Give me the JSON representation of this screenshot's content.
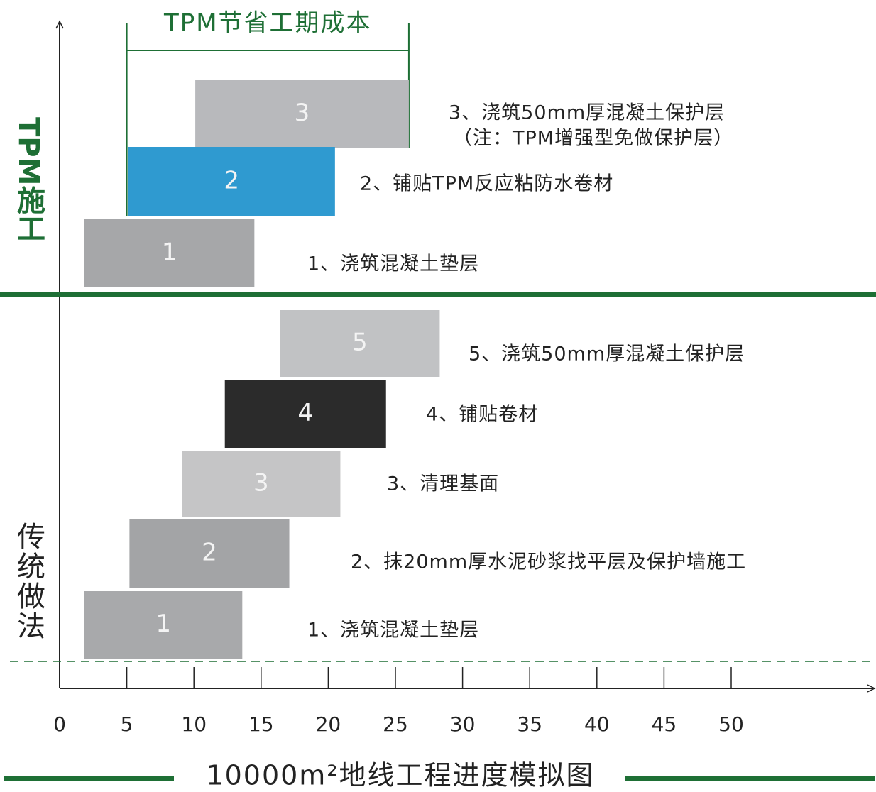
{
  "chart_data": {
    "type": "gantt",
    "title": "10000m²地线工程进度模拟图",
    "xlim": [
      0,
      60
    ],
    "xticks": [
      0,
      5,
      10,
      15,
      20,
      25,
      30,
      35,
      40,
      45,
      50
    ],
    "accent_color": "#1e6f35",
    "bracket": {
      "label": "TPM节省工期成本",
      "range": [
        5,
        26
      ]
    },
    "groups": [
      {
        "name": "TPM施工",
        "tasks": [
          {
            "label": "3",
            "start": 10.1,
            "end": 26,
            "color": "#b8b9bc",
            "desc": [
              "3、浇筑50mm厚混凝土保护层",
              "（注：TPM增强型免做保护层）"
            ]
          },
          {
            "label": "2",
            "start": 5.1,
            "end": 20.5,
            "color": "#2f9ad0",
            "desc": [
              "2、铺贴TPM反应粘防水卷材"
            ]
          },
          {
            "label": "1",
            "start": 1.85,
            "end": 14.5,
            "color": "#a6a7a9",
            "desc": [
              "1、浇筑混凝土垫层"
            ]
          }
        ]
      },
      {
        "name": "传统做法",
        "tasks": [
          {
            "label": "5",
            "start": 16.4,
            "end": 28.3,
            "color": "#c1c2c4",
            "desc": [
              "5、浇筑50mm厚混凝土保护层"
            ]
          },
          {
            "label": "4",
            "start": 12.3,
            "end": 24.3,
            "color": "#2b2b2b",
            "desc": [
              "4、铺贴卷材"
            ]
          },
          {
            "label": "3",
            "start": 9.1,
            "end": 20.9,
            "color": "#c5c5c6",
            "desc": [
              "3、清理基面"
            ]
          },
          {
            "label": "2",
            "start": 5.2,
            "end": 17.1,
            "color": "#a3a4a6",
            "desc": [
              "2、抹20mm厚水泥砂浆找平层及保护墙施工"
            ]
          },
          {
            "label": "1",
            "start": 1.85,
            "end": 13.6,
            "color": "#a8a9ab",
            "desc": [
              "1、浇筑混凝土垫层"
            ]
          }
        ]
      }
    ]
  }
}
